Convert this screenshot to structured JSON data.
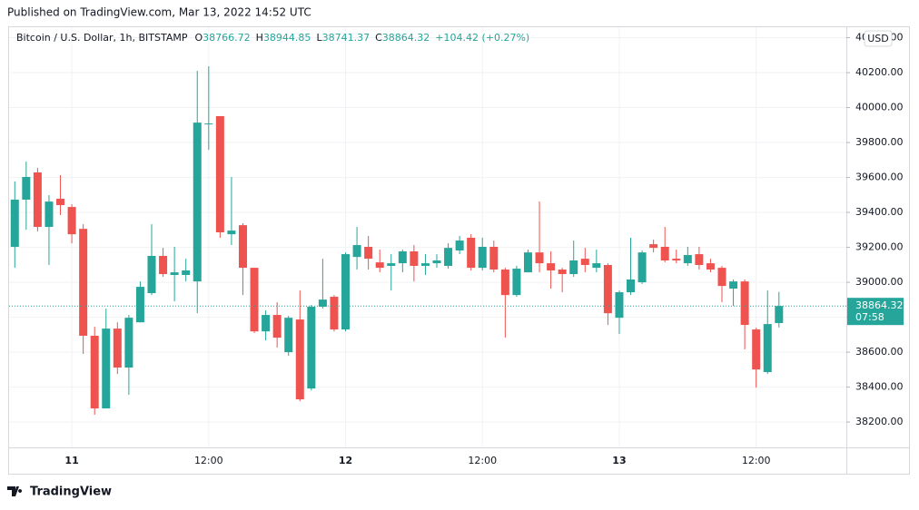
{
  "published": "Published on TradingView.com, Mar 13, 2022 14:52 UTC",
  "brand": "TradingView",
  "chart_data": {
    "type": "candlestick",
    "symbol": "Bitcoin / U.S. Dollar, 1h, BITSTAMP",
    "ohlc_labels": [
      "O",
      "H",
      "L",
      "C"
    ],
    "change": "+104.42 (+0.27%)",
    "currency": "USD",
    "countdown": "07:58",
    "up_color": "#26a69a",
    "down_color": "#ef5350",
    "grid": true,
    "categories": [
      null,
      null,
      null,
      null,
      null,
      "11",
      null,
      null,
      null,
      null,
      null,
      null,
      null,
      null,
      null,
      null,
      null,
      "12:00",
      null,
      null,
      null,
      null,
      null,
      null,
      null,
      null,
      null,
      null,
      null,
      "12",
      null,
      null,
      null,
      null,
      null,
      null,
      null,
      null,
      null,
      null,
      null,
      "12:00",
      null,
      null,
      null,
      null,
      null,
      null,
      null,
      null,
      null,
      null,
      null,
      "13",
      null,
      null,
      null,
      null,
      null,
      null,
      null,
      null,
      null,
      null,
      null,
      "12:00",
      null,
      null
    ],
    "open": [
      39203,
      39473,
      39629,
      39317,
      39478,
      39431,
      39306,
      38694,
      38278,
      38735,
      38512,
      38771,
      38938,
      39151,
      39042,
      39042,
      39005,
      39904,
      39951,
      39275,
      39327,
      39083,
      38719,
      38813,
      38600,
      38787,
      38392,
      38860,
      38917,
      38730,
      39145,
      39203,
      39114,
      39094,
      39109,
      39177,
      39094,
      39109,
      39094,
      39182,
      39255,
      39083,
      39203,
      39073,
      38927,
      39057,
      39171,
      39109,
      39073,
      39047,
      39135,
      39083,
      39099,
      38797,
      38943,
      39000,
      39218,
      39203,
      39135,
      39109,
      39161,
      39109,
      39083,
      38964,
      39005,
      38730,
      38486,
      38766.72
    ],
    "high": [
      39577,
      39691,
      39655,
      39499,
      39613,
      39447,
      39332,
      38745,
      38849,
      38771,
      38813,
      39005,
      39332,
      39197,
      39203,
      39135,
      40210,
      40236,
      39951,
      39603,
      39338,
      39083,
      38839,
      38886,
      38808,
      38953,
      38870,
      39135,
      38927,
      39171,
      39317,
      39265,
      39187,
      39161,
      39187,
      39213,
      39161,
      39161,
      39223,
      39265,
      39275,
      39255,
      39239,
      39083,
      39094,
      39187,
      39462,
      39177,
      39083,
      39239,
      39197,
      39187,
      39109,
      38953,
      39255,
      39182,
      39244,
      39317,
      39187,
      39203,
      39203,
      39135,
      39094,
      39016,
      39016,
      38740,
      38953,
      38944.85
    ],
    "low": [
      39083,
      39301,
      39291,
      39099,
      39385,
      39223,
      38590,
      38242,
      38278,
      38475,
      38356,
      38771,
      38927,
      39031,
      38891,
      39005,
      38823,
      39758,
      39255,
      39213,
      38927,
      38710,
      38667,
      38626,
      38579,
      38319,
      38381,
      38850,
      38719,
      38719,
      39073,
      39073,
      39057,
      38953,
      39057,
      39005,
      39042,
      39083,
      39078,
      39161,
      39068,
      39068,
      39057,
      38683,
      38917,
      39057,
      39057,
      38964,
      38943,
      39031,
      39057,
      39057,
      38756,
      38704,
      38927,
      38990,
      39171,
      39114,
      39109,
      39094,
      39073,
      39057,
      38886,
      38865,
      38616,
      38397,
      38475,
      38741.37
    ],
    "close": [
      39473,
      39603,
      39317,
      39462,
      39442,
      39275,
      38694,
      38278,
      38735,
      38512,
      38797,
      38974,
      39151,
      39047,
      39057,
      39068,
      39914,
      39909,
      39286,
      39296,
      39083,
      38719,
      38813,
      38683,
      38797,
      38330,
      38860,
      38901,
      38730,
      39161,
      39213,
      39135,
      39083,
      39109,
      39177,
      39094,
      39109,
      39125,
      39197,
      39239,
      39083,
      39203,
      39073,
      38927,
      39078,
      39171,
      39109,
      39068,
      39047,
      39125,
      39099,
      39109,
      38823,
      38943,
      39016,
      39171,
      39197,
      39125,
      39125,
      39156,
      39099,
      39073,
      38979,
      39005,
      38756,
      38501,
      38761,
      38864.32
    ],
    "ylim": [
      38055,
      40460
    ],
    "yticks": [
      {
        "value": 38200,
        "label": "38200.00"
      },
      {
        "value": 38400,
        "label": "38400.00"
      },
      {
        "value": 38600,
        "label": "38600.00"
      },
      {
        "value": 38800,
        "label": "38800.00"
      },
      {
        "value": 39000,
        "label": "39000.00"
      },
      {
        "value": 39200,
        "label": "39200.00"
      },
      {
        "value": 39400,
        "label": "39400.00"
      },
      {
        "value": 39600,
        "label": "39600.00"
      },
      {
        "value": 39800,
        "label": "39800.00"
      },
      {
        "value": 40000,
        "label": "40000.00"
      },
      {
        "value": 40200,
        "label": "40200.00"
      },
      {
        "value": 40400,
        "label": "40400.00"
      }
    ]
  }
}
